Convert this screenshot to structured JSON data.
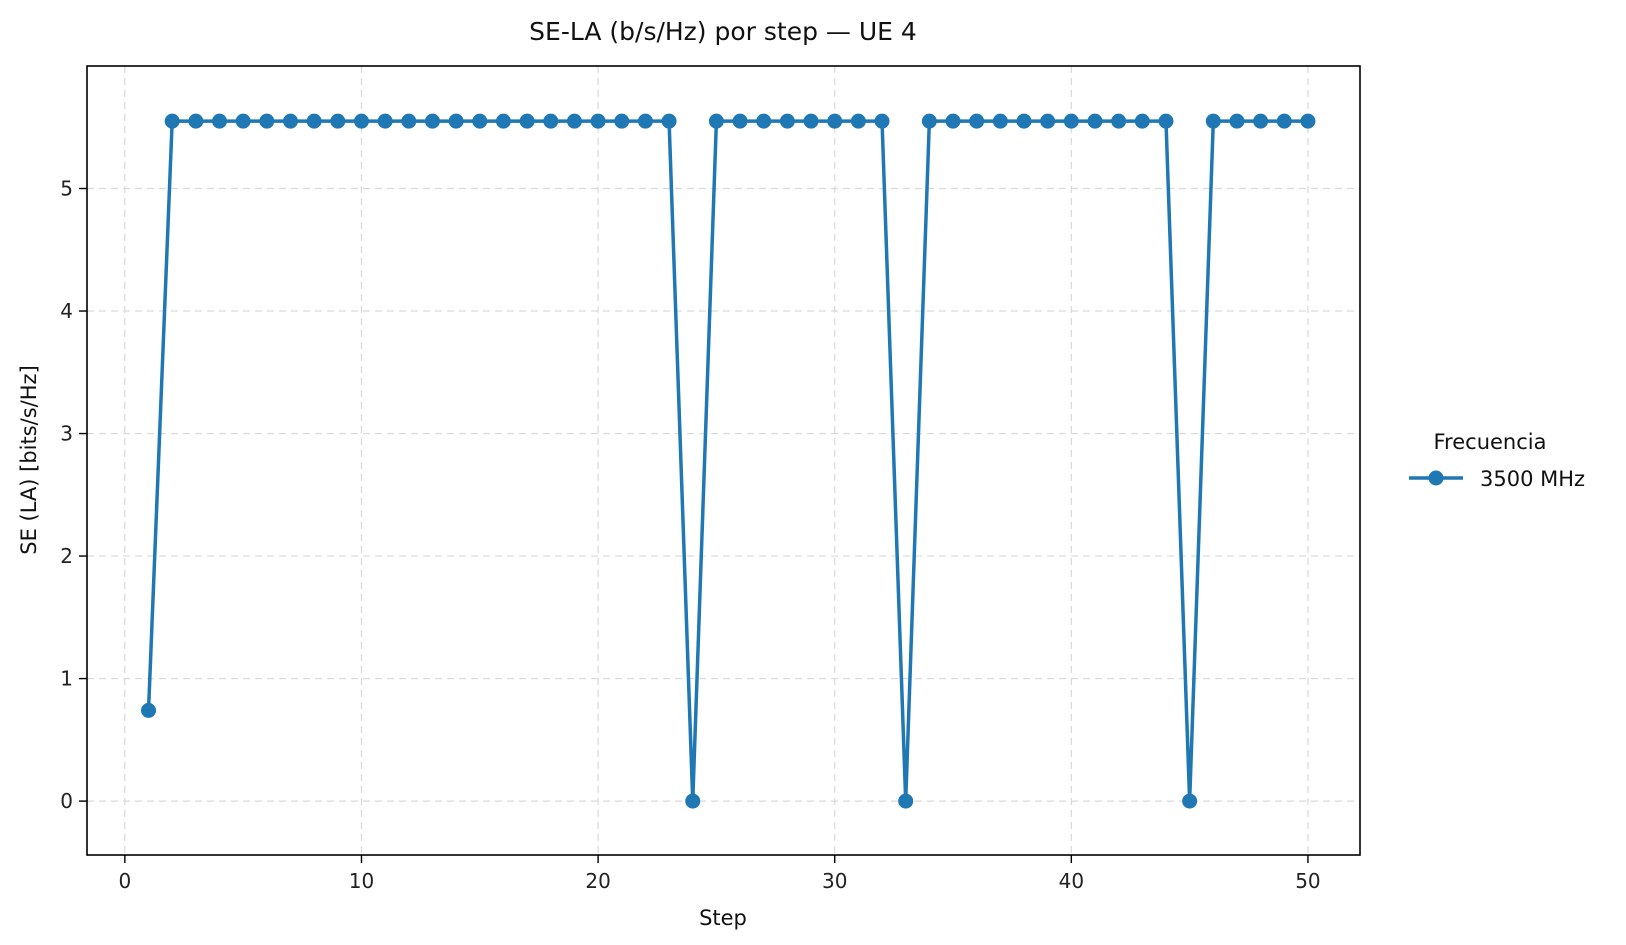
{
  "chart_data": {
    "type": "line",
    "title": "SE-LA (b/s/Hz) por step — UE 4",
    "xlabel": "Step",
    "ylabel": "SE (LA) [bits/s/Hz]",
    "xlim": [
      -1.6,
      52.2
    ],
    "ylim": [
      -0.44,
      6.0
    ],
    "xticks": [
      0,
      10,
      20,
      30,
      40,
      50
    ],
    "yticks": [
      0,
      1,
      2,
      3,
      4,
      5
    ],
    "grid": true,
    "legend": {
      "title": "Frecuencia",
      "placement": "right-outside"
    },
    "series": [
      {
        "name": "3500 MHz",
        "color": "#1f77b4",
        "marker": "circle",
        "x": [
          1,
          2,
          3,
          4,
          5,
          6,
          7,
          8,
          9,
          10,
          11,
          12,
          13,
          14,
          15,
          16,
          17,
          18,
          19,
          20,
          21,
          22,
          23,
          24,
          25,
          26,
          27,
          28,
          29,
          30,
          31,
          32,
          33,
          34,
          35,
          36,
          37,
          38,
          39,
          40,
          41,
          42,
          43,
          44,
          45,
          46,
          47,
          48,
          49,
          50
        ],
        "y": [
          0.74,
          5.55,
          5.55,
          5.55,
          5.55,
          5.55,
          5.55,
          5.55,
          5.55,
          5.55,
          5.55,
          5.55,
          5.55,
          5.55,
          5.55,
          5.55,
          5.55,
          5.55,
          5.55,
          5.55,
          5.55,
          5.55,
          5.55,
          0,
          5.55,
          5.55,
          5.55,
          5.55,
          5.55,
          5.55,
          5.55,
          5.55,
          0,
          5.55,
          5.55,
          5.55,
          5.55,
          5.55,
          5.55,
          5.55,
          5.55,
          5.55,
          5.55,
          5.55,
          0,
          5.55,
          5.55,
          5.55,
          5.55,
          5.55
        ]
      }
    ]
  }
}
